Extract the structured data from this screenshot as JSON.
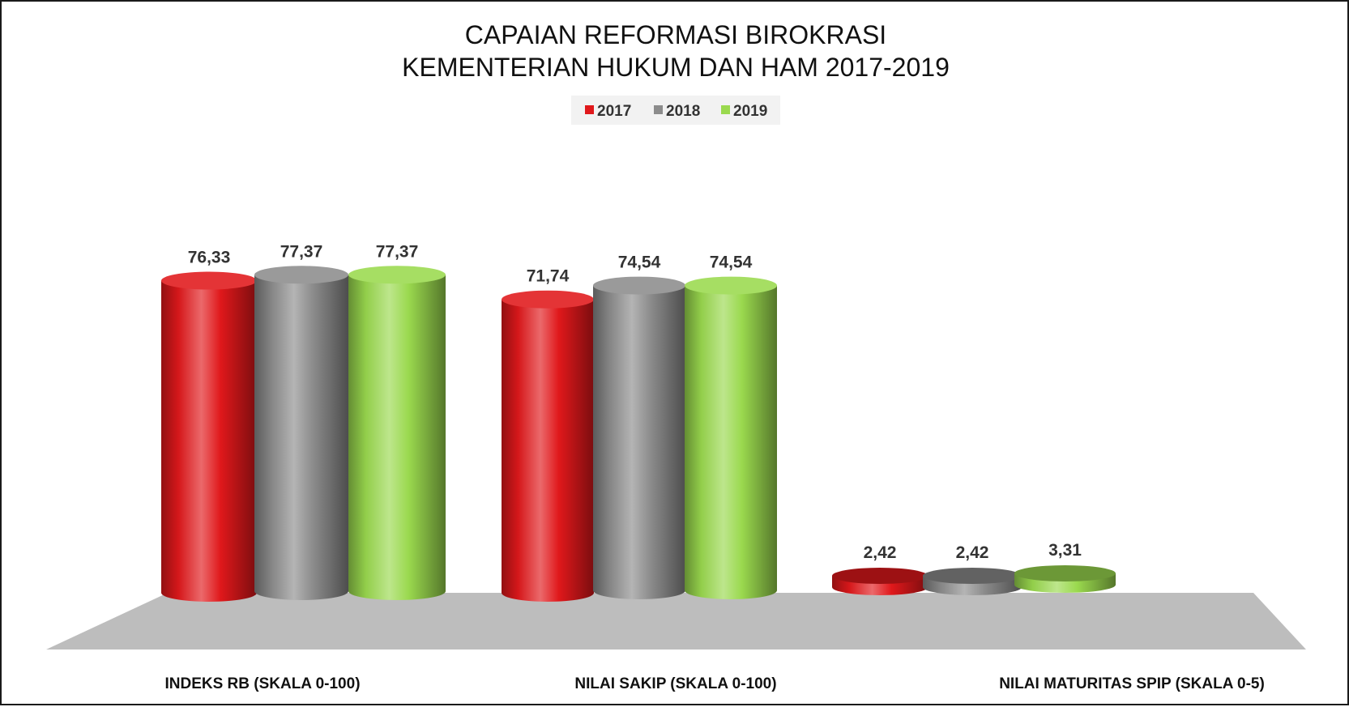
{
  "chart_data": {
    "type": "bar",
    "title": [
      "CAPAIAN REFORMASI BIROKRASI",
      "KEMENTERIAN HUKUM DAN HAM 2017-2019"
    ],
    "categories": [
      "INDEKS RB (SKALA 0-100)",
      "NILAI SAKIP (SKALA 0-100)",
      "NILAI MATURITAS SPIP (SKALA 0-5)"
    ],
    "series": [
      {
        "name": "2017",
        "values": [
          76.33,
          71.74,
          2.42
        ],
        "labels": [
          "76,33",
          "71,74",
          "2,42"
        ],
        "color": "#e0181b"
      },
      {
        "name": "2018",
        "values": [
          77.37,
          74.54,
          2.42
        ],
        "labels": [
          "77,37",
          "74,54",
          "2,42"
        ],
        "color": "#8c8c8c"
      },
      {
        "name": "2019",
        "values": [
          77.37,
          74.54,
          3.31
        ],
        "labels": [
          "77,37",
          "74,54",
          "3,31"
        ],
        "color": "#9ad94e"
      }
    ],
    "ylim": [
      0,
      100
    ],
    "legend": "top-center",
    "grid": false,
    "style": "3d-cylinder"
  }
}
